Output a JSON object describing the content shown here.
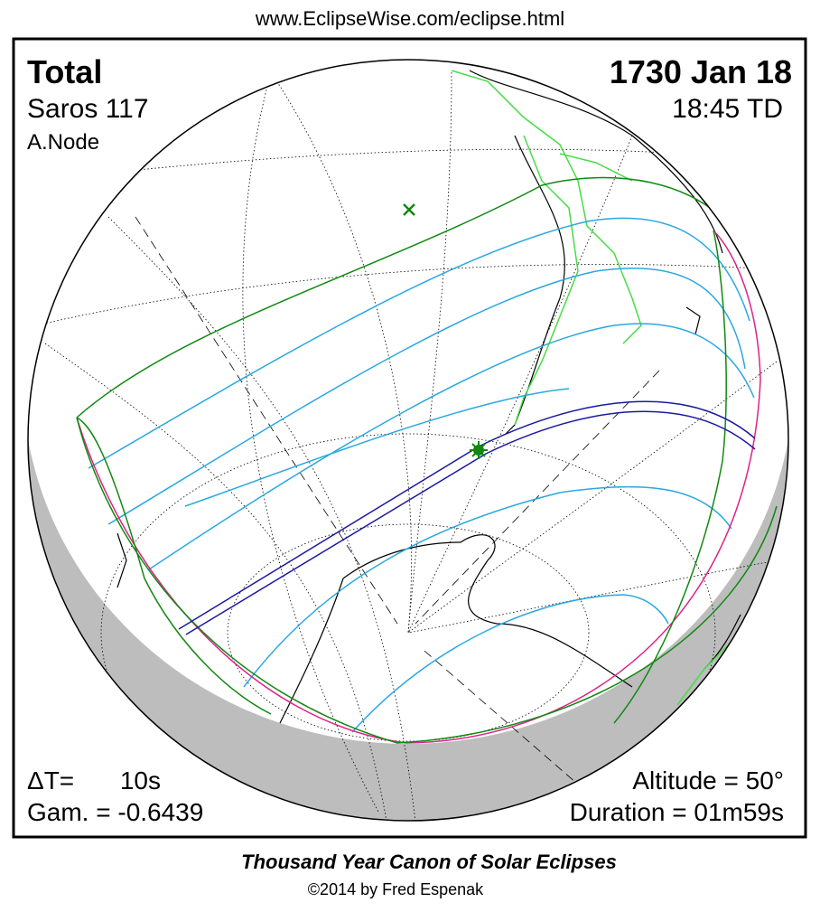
{
  "header": {
    "url": "www.EclipseWise.com/eclipse.html"
  },
  "eclipse": {
    "type": "Total",
    "date": "1730 Jan 18",
    "saros": "Saros 117",
    "time": "18:45 TD",
    "node": "A.Node"
  },
  "stats": {
    "delta_t_label": "ΔT=",
    "delta_t_value": "10s",
    "altitude": "Altitude = 50°",
    "gamma": "Gam. = -0.6439",
    "duration": "Duration = 01m59s"
  },
  "footer": {
    "title": "Thousand Year Canon of Solar Eclipses",
    "credit": "©2014 by Fred Espenak"
  }
}
